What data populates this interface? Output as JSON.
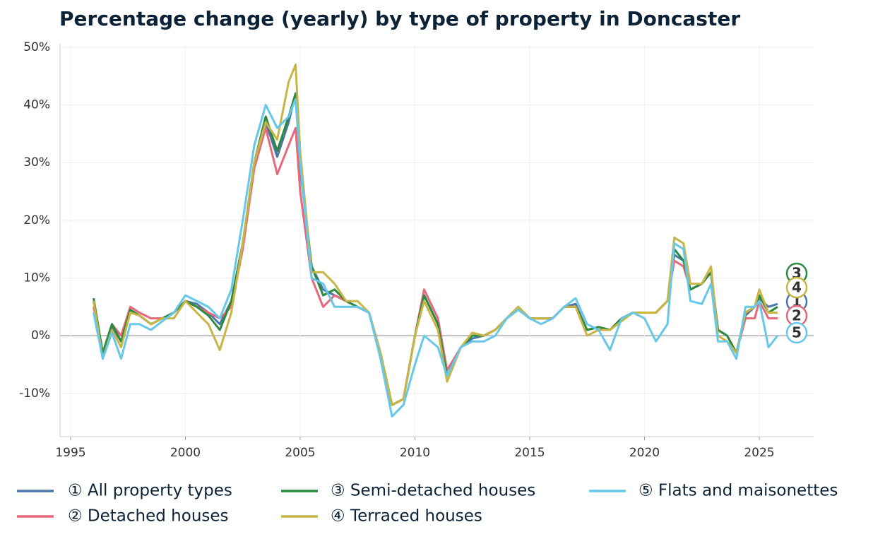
{
  "chart_data": {
    "type": "line",
    "title": "Percentage change (yearly) by type of property in Doncaster",
    "x": [
      1996.0,
      1996.4,
      1996.8,
      1997.2,
      1997.6,
      1998.0,
      1998.5,
      1999.0,
      1999.5,
      2000.0,
      2000.5,
      2001.0,
      2001.5,
      2002.0,
      2002.5,
      2003.0,
      2003.5,
      2004.0,
      2004.5,
      2004.8,
      2005.0,
      2005.5,
      2006.0,
      2006.5,
      2007.0,
      2007.5,
      2008.0,
      2008.5,
      2009.0,
      2009.5,
      2010.0,
      2010.4,
      2011.0,
      2011.4,
      2012.0,
      2012.5,
      2013.0,
      2013.5,
      2014.0,
      2014.5,
      2015.0,
      2015.5,
      2016.0,
      2016.5,
      2017.0,
      2017.5,
      2018.0,
      2018.5,
      2019.0,
      2019.5,
      2020.0,
      2020.5,
      2021.0,
      2021.3,
      2021.7,
      2022.0,
      2022.5,
      2022.9,
      2023.2,
      2023.6,
      2024.0,
      2024.4,
      2024.8,
      2025.0,
      2025.4,
      2025.8
    ],
    "series": [
      {
        "name": "① All property types",
        "label": "1",
        "color": "#4a77a8",
        "values": [
          6,
          -3,
          1.5,
          -1,
          4,
          3.5,
          2,
          3,
          4,
          6,
          5.5,
          4,
          2,
          6,
          16,
          30,
          37,
          31,
          37,
          42,
          29,
          12,
          8,
          7,
          6,
          5,
          4,
          -3,
          -12,
          -11,
          0,
          7,
          2,
          -7,
          -2,
          -0.5,
          0,
          1,
          3,
          4.5,
          3,
          3,
          3,
          5,
          5.5,
          1,
          1.5,
          1,
          3,
          4,
          4,
          4,
          6,
          14,
          13,
          8,
          9,
          11,
          1,
          0,
          -3,
          3.5,
          5,
          6.5,
          5,
          5.5
        ]
      },
      {
        "name": "② Detached houses",
        "label": "2",
        "color": "#e8677a",
        "values": [
          5,
          -3,
          2,
          0,
          5,
          4,
          3,
          3,
          4,
          6,
          5,
          4,
          3,
          5,
          15,
          29,
          36,
          28,
          33,
          36,
          25,
          10,
          5,
          7,
          6,
          5,
          4,
          -3,
          -12,
          -11,
          0,
          8,
          3,
          -6,
          -2,
          0,
          0,
          1,
          3,
          5,
          3,
          3,
          3,
          5,
          5,
          1,
          1.5,
          1,
          3,
          4,
          4,
          4,
          6,
          13,
          12,
          8,
          9,
          11,
          1,
          0,
          -3,
          3,
          3,
          6,
          3,
          3
        ]
      },
      {
        "name": "③ Semi-detached houses",
        "label": "3",
        "color": "#2b8a3e",
        "values": [
          6.5,
          -3,
          2,
          -1,
          4.5,
          3.5,
          2,
          3,
          4,
          6,
          5,
          3.5,
          1,
          6,
          16,
          30,
          38,
          32,
          38,
          42,
          30,
          12,
          7,
          8,
          6,
          5,
          4,
          -3,
          -12,
          -11,
          0,
          7,
          2,
          -7,
          -2,
          0,
          0,
          1,
          3,
          5,
          3,
          3,
          3,
          5,
          5,
          1,
          1.5,
          1,
          3,
          4,
          4,
          4,
          6,
          15,
          13,
          8,
          9,
          11,
          1,
          0,
          -3,
          4,
          5,
          7,
          4,
          5
        ]
      },
      {
        "name": "④ Terraced houses",
        "label": "4",
        "color": "#c9b545",
        "values": [
          6,
          -4,
          1,
          -2,
          4,
          3.5,
          2,
          3,
          3,
          6,
          4,
          2,
          -2.5,
          4,
          16,
          30,
          37,
          34,
          44,
          47,
          32,
          11,
          11,
          9,
          6,
          6,
          4,
          -3,
          -12,
          -11,
          0,
          6,
          1,
          -8,
          -2,
          0.5,
          0,
          1,
          3,
          5,
          3,
          3,
          3,
          5,
          5,
          0,
          1,
          1,
          2.5,
          4,
          4,
          4,
          6,
          17,
          16,
          9,
          9,
          12,
          0,
          -1,
          -3,
          4,
          5,
          8,
          4,
          4
        ]
      },
      {
        "name": "⑤ Flats and maisonettes",
        "label": "5",
        "color": "#66c8e8",
        "values": [
          4,
          -4,
          0.5,
          -4,
          2,
          2,
          1,
          2.5,
          4,
          7,
          6,
          5,
          3,
          8,
          20,
          33,
          40,
          36,
          38,
          41,
          30,
          10,
          9,
          5,
          5,
          5,
          4,
          -4,
          -14,
          -12,
          -5,
          0,
          -2,
          -7,
          -2,
          -1,
          -1,
          0,
          3,
          4.5,
          3,
          2,
          3,
          5,
          6.5,
          2,
          1,
          -2.5,
          3,
          4,
          3,
          -1,
          2,
          16,
          15,
          6,
          5.5,
          9,
          -1,
          -1,
          -4,
          5,
          5,
          6,
          -2,
          0
        ]
      }
    ],
    "xlim": [
      1994.54,
      2027.37
    ],
    "ylim": [
      -17.5,
      50.6
    ],
    "xticks": [
      1995,
      2000,
      2005,
      2010,
      2015,
      2020,
      2025
    ],
    "yticks": [
      {
        "value": -10,
        "label": "-10%"
      },
      {
        "value": 0,
        "label": "0%"
      },
      {
        "value": 10,
        "label": "10%"
      },
      {
        "value": 20,
        "label": "20%"
      },
      {
        "value": 30,
        "label": "30%"
      },
      {
        "value": 40,
        "label": "40%"
      },
      {
        "value": 50,
        "label": "50%"
      }
    ],
    "grid": true
  }
}
